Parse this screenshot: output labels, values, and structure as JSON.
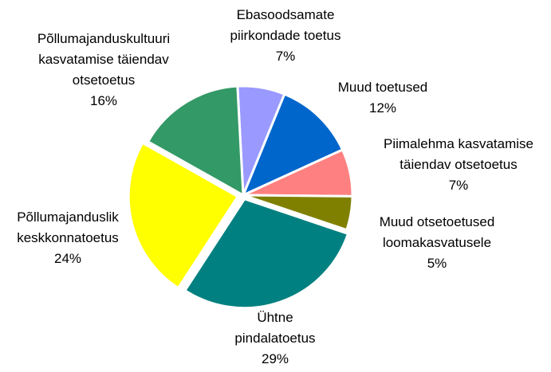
{
  "chart_data": {
    "type": "pie",
    "categories": [
      "Ebasoodsamate piirkondade toetus",
      "Muud toetused",
      "Piimalehma kasvatamise täiendav otsetoetus",
      "Muud otsetoetused loomakasvatusele",
      "Ühtne pindalatoetus",
      "Põllumajanduslik keskkonnatoetus",
      "Põllumajanduskultuuri kasvatamise täiendav otsetoetus"
    ],
    "values": [
      7,
      12,
      7,
      5,
      29,
      24,
      16
    ],
    "value_labels": [
      "7%",
      "12%",
      "7%",
      "5%",
      "29%",
      "24%",
      "16%"
    ],
    "colors": [
      "#9999ff",
      "#0066cc",
      "#ff8080",
      "#808000",
      "#008080",
      "#ffff00",
      "#339966"
    ]
  }
}
